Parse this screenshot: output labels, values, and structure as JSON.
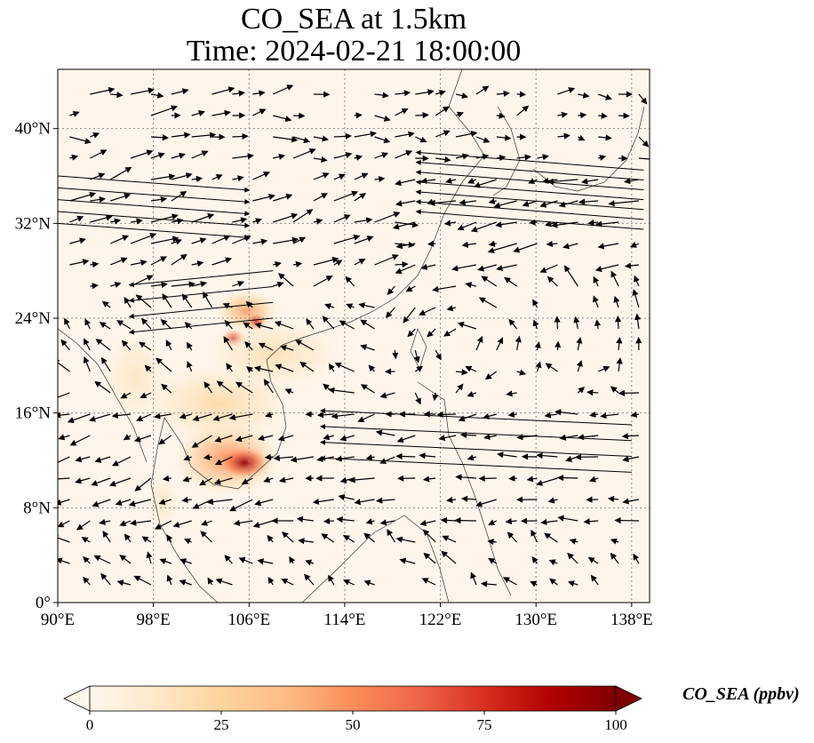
{
  "figure": {
    "title_line1": "CO_SEA at 1.5km",
    "title_line2": "Time: 2024-02-21 18:00:00"
  },
  "map": {
    "variable": "CO_SEA",
    "level": "1.5km",
    "extent": {
      "lon_min": 90,
      "lon_max": 139.5,
      "lat_min": 0,
      "lat_max": 45
    },
    "lon_ticks": [
      {
        "value": 90,
        "label": "90°E"
      },
      {
        "value": 98,
        "label": "98°E"
      },
      {
        "value": 106,
        "label": "106°E"
      },
      {
        "value": 114,
        "label": "114°E"
      },
      {
        "value": 122,
        "label": "122°E"
      },
      {
        "value": 130,
        "label": "130°E"
      },
      {
        "value": 138,
        "label": "138°E"
      }
    ],
    "lat_ticks": [
      {
        "value": 0,
        "label": "0°"
      },
      {
        "value": 8,
        "label": "8°N"
      },
      {
        "value": 16,
        "label": "16°N"
      },
      {
        "value": 24,
        "label": "24°N"
      },
      {
        "value": 32,
        "label": "32°N"
      },
      {
        "value": 40,
        "label": "40°N"
      }
    ],
    "gridlines": true,
    "background_color": "#fff5eb",
    "plumes": [
      {
        "name": "cambodia-plume",
        "lon": 104.2,
        "lat": 12.2,
        "r_lon": 4.5,
        "r_lat": 3.2,
        "value": 50
      },
      {
        "name": "tonle-sap-core",
        "lon": 105.6,
        "lat": 11.8,
        "r_lon": 2.2,
        "r_lat": 1.4,
        "value": 95
      },
      {
        "name": "laos-plume",
        "lon": 103.5,
        "lat": 16.8,
        "r_lon": 6.5,
        "r_lat": 3.5,
        "value": 22
      },
      {
        "name": "myanmar-plume",
        "lon": 96.5,
        "lat": 19,
        "r_lon": 3,
        "r_lat": 4,
        "value": 14
      },
      {
        "name": "guangxi-plume",
        "lon": 105.8,
        "lat": 24.6,
        "r_lon": 2.6,
        "r_lat": 1.8,
        "value": 45
      },
      {
        "name": "yunnan-core",
        "lon": 104.7,
        "lat": 22.3,
        "r_lon": 1,
        "r_lat": 0.8,
        "value": 90
      },
      {
        "name": "guangxi-core",
        "lon": 106.6,
        "lat": 23.7,
        "r_lon": 0.9,
        "r_lat": 0.8,
        "value": 80
      },
      {
        "name": "south-china-haze",
        "lon": 108,
        "lat": 21,
        "r_lon": 6,
        "r_lat": 3,
        "value": 18
      },
      {
        "name": "malay-haze",
        "lon": 98.8,
        "lat": 8.5,
        "r_lon": 1.5,
        "r_lat": 2.5,
        "value": 12
      }
    ],
    "wind": {
      "flow_bands": [
        {
          "lat_start": 31.5,
          "lat_end": 36.5,
          "lon_start": 139,
          "lon_end": 120,
          "count": 7,
          "direction": "west-southwest"
        },
        {
          "lat_start": 36,
          "lat_end": 32,
          "lon_start": 90,
          "lon_end": 106,
          "count": 5,
          "direction": "east-northeast"
        },
        {
          "lat_start": 28,
          "lat_end": 24,
          "lon_start": 108,
          "lon_end": 96,
          "count": 4,
          "direction": "west"
        },
        {
          "lat_start": 11,
          "lat_end": 15,
          "lon_start": 138,
          "lon_end": 112,
          "count": 4,
          "direction": "west"
        }
      ]
    }
  },
  "colorbar": {
    "label": "CO_SEA (ppbv)",
    "min": 0,
    "max": 100,
    "ticks": [
      {
        "value": 0,
        "label": "0"
      },
      {
        "value": 25,
        "label": "25"
      },
      {
        "value": 50,
        "label": "50"
      },
      {
        "value": 75,
        "label": "75"
      },
      {
        "value": 100,
        "label": "100"
      }
    ],
    "extend": "both",
    "colormap": "OrRd",
    "stops": [
      "#fff7ec",
      "#fee8c8",
      "#fdd49e",
      "#fdbb84",
      "#fc8d59",
      "#ef6548",
      "#d7301f",
      "#b30000",
      "#7f0000"
    ]
  }
}
